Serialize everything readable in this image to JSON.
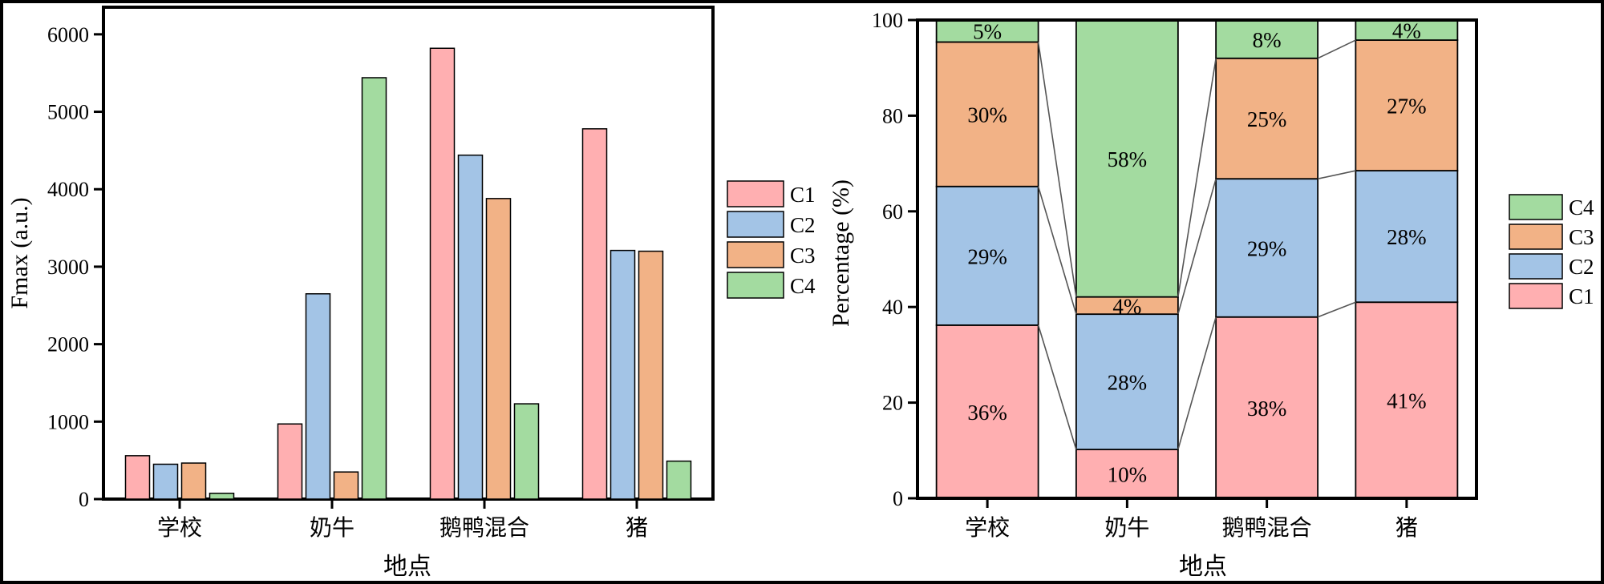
{
  "chart_data": [
    {
      "type": "bar",
      "categories": [
        "学校",
        "奶牛",
        "鹅鸭混合",
        "猪"
      ],
      "series": [
        {
          "name": "C1",
          "values": [
            560,
            970,
            5820,
            4780
          ]
        },
        {
          "name": "C2",
          "values": [
            450,
            2650,
            4440,
            3210
          ]
        },
        {
          "name": "C3",
          "values": [
            465,
            350,
            3880,
            3200
          ]
        },
        {
          "name": "C4",
          "values": [
            75,
            5440,
            1230,
            490
          ]
        }
      ],
      "xlabel": "地点",
      "ylabel": "Fmax (a.u.)",
      "yticks": [
        "0",
        "1000",
        "2000",
        "3000",
        "4000",
        "5000",
        "6000"
      ],
      "ylim": [
        0,
        6350
      ],
      "grid": false,
      "legend_position": "right"
    },
    {
      "type": "bar",
      "stacked": true,
      "categories": [
        "学校",
        "奶牛",
        "鹅鸭混合",
        "猪"
      ],
      "series": [
        {
          "name": "C1",
          "values": [
            36.2,
            10.2,
            37.9,
            41.0
          ],
          "labels": [
            "36%",
            "10%",
            "38%",
            "41%"
          ]
        },
        {
          "name": "C2",
          "values": [
            29.0,
            28.3,
            28.9,
            27.5
          ],
          "labels": [
            "29%",
            "28%",
            "29%",
            "28%"
          ]
        },
        {
          "name": "C3",
          "values": [
            30.2,
            3.6,
            25.2,
            27.3
          ],
          "labels": [
            "30%",
            "4%",
            "25%",
            "27%"
          ]
        },
        {
          "name": "C4",
          "values": [
            4.6,
            57.9,
            8.0,
            4.2
          ],
          "labels": [
            "5%",
            "58%",
            "8%",
            "4%"
          ]
        }
      ],
      "xlabel": "地点",
      "ylabel": "Percentage (%)",
      "yticks": [
        "0",
        "20",
        "40",
        "60",
        "80",
        "100"
      ],
      "ylim": [
        0,
        100
      ],
      "grid": false,
      "legend_position": "right"
    }
  ],
  "colors": {
    "C1": "#ffafb1",
    "C2": "#a3c4e6",
    "C3": "#f2b286",
    "C4": "#a3dba0",
    "stroke": "#000000",
    "connector": "#555555"
  }
}
